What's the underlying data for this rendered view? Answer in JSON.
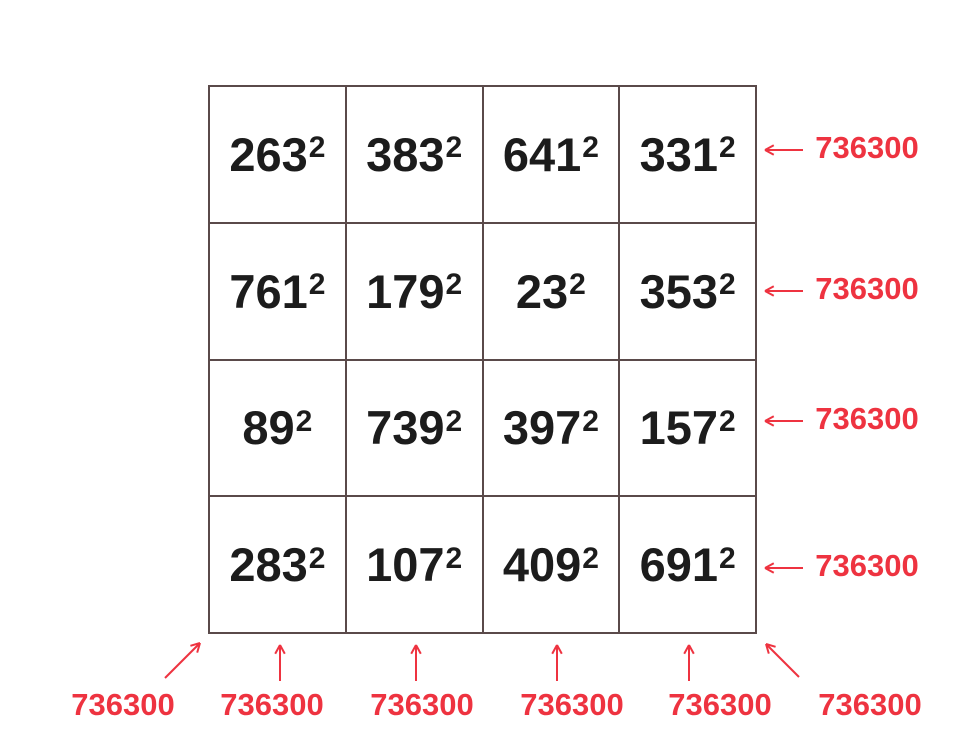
{
  "grid": [
    [
      {
        "base": "263",
        "exp": "2"
      },
      {
        "base": "383",
        "exp": "2"
      },
      {
        "base": "641",
        "exp": "2"
      },
      {
        "base": "331",
        "exp": "2"
      }
    ],
    [
      {
        "base": "761",
        "exp": "2"
      },
      {
        "base": "179",
        "exp": "2"
      },
      {
        "base": "23",
        "exp": "2"
      },
      {
        "base": "353",
        "exp": "2"
      }
    ],
    [
      {
        "base": "89",
        "exp": "2"
      },
      {
        "base": "739",
        "exp": "2"
      },
      {
        "base": "397",
        "exp": "2"
      },
      {
        "base": "157",
        "exp": "2"
      }
    ],
    [
      {
        "base": "283",
        "exp": "2"
      },
      {
        "base": "107",
        "exp": "2"
      },
      {
        "base": "409",
        "exp": "2"
      },
      {
        "base": "691",
        "exp": "2"
      }
    ]
  ],
  "row_sums": [
    "736300",
    "736300",
    "736300",
    "736300"
  ],
  "bottom_sums": [
    "736300",
    "736300",
    "736300",
    "736300",
    "736300",
    "736300"
  ],
  "colors": {
    "text": "#1c1c1c",
    "accent": "#ee3340",
    "border": "#5a4a4a"
  }
}
